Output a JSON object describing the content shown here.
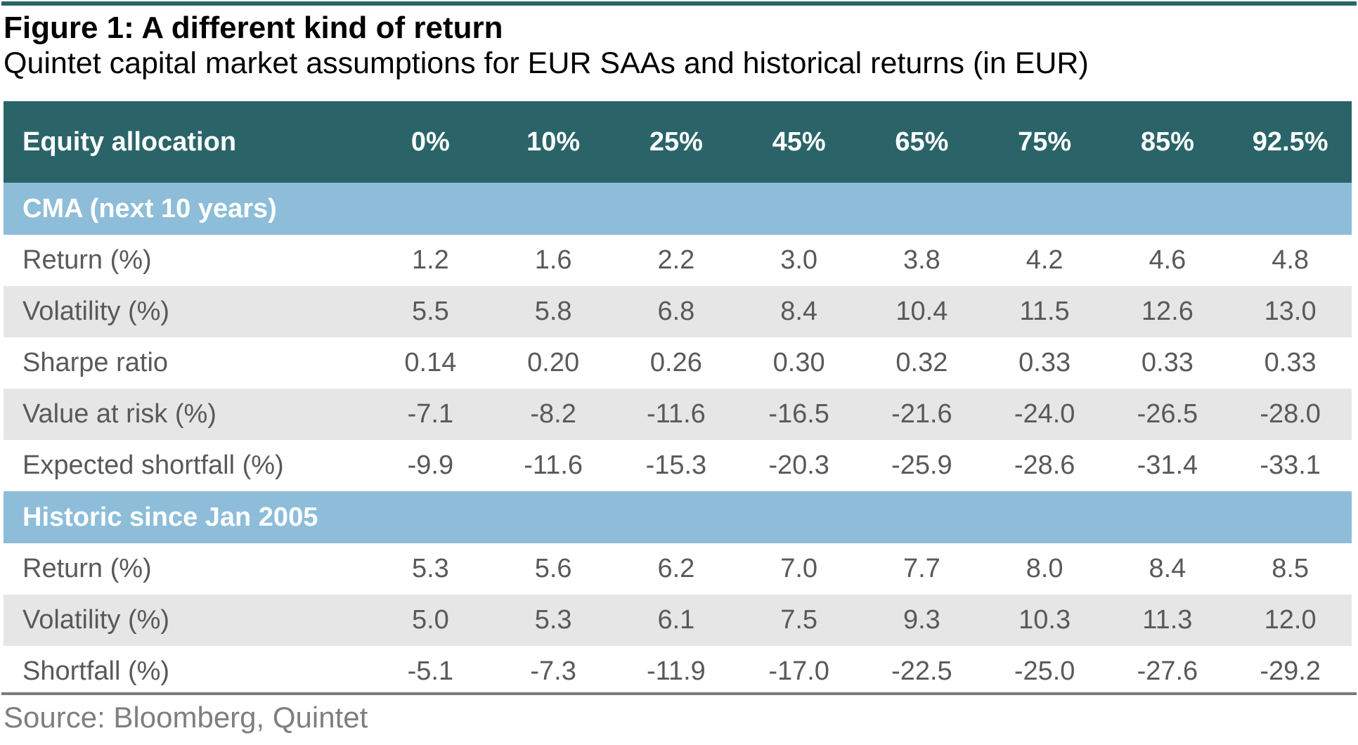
{
  "figure": {
    "title": "Figure 1: A different kind of return",
    "subtitle": "Quintet capital market assumptions for EUR SAAs and historical returns (in EUR)",
    "source": "Source: Bloomberg, Quintet"
  },
  "colors": {
    "header_bg": "#2a6468",
    "section_bg": "#8dbdd8",
    "row_shade": "#e6e6e6",
    "text_gray": "#595959"
  },
  "table": {
    "header": [
      "Equity allocation",
      "0%",
      "10%",
      "25%",
      "45%",
      "65%",
      "75%",
      "85%",
      "92.5%"
    ],
    "sections": [
      {
        "title": "CMA (next 10 years)",
        "rows": [
          [
            "Return (%)",
            "1.2",
            "1.6",
            "2.2",
            "3.0",
            "3.8",
            "4.2",
            "4.6",
            "4.8"
          ],
          [
            "Volatility (%)",
            "5.5",
            "5.8",
            "6.8",
            "8.4",
            "10.4",
            "11.5",
            "12.6",
            "13.0"
          ],
          [
            "Sharpe ratio",
            "0.14",
            "0.20",
            "0.26",
            "0.30",
            "0.32",
            "0.33",
            "0.33",
            "0.33"
          ],
          [
            "Value at risk (%)",
            "-7.1",
            "-8.2",
            "-11.6",
            "-16.5",
            "-21.6",
            "-24.0",
            "-26.5",
            "-28.0"
          ],
          [
            "Expected shortfall (%)",
            "-9.9",
            "-11.6",
            "-15.3",
            "-20.3",
            "-25.9",
            "-28.6",
            "-31.4",
            "-33.1"
          ]
        ]
      },
      {
        "title": "Historic since Jan 2005",
        "rows": [
          [
            "Return (%)",
            "5.3",
            "5.6",
            "6.2",
            "7.0",
            "7.7",
            "8.0",
            "8.4",
            "8.5"
          ],
          [
            "Volatility (%)",
            "5.0",
            "5.3",
            "6.1",
            "7.5",
            "9.3",
            "10.3",
            "11.3",
            "12.0"
          ],
          [
            "Shortfall (%)",
            "-5.1",
            "-7.3",
            "-11.9",
            "-17.0",
            "-22.5",
            "-25.0",
            "-27.6",
            "-29.2"
          ]
        ]
      }
    ]
  }
}
